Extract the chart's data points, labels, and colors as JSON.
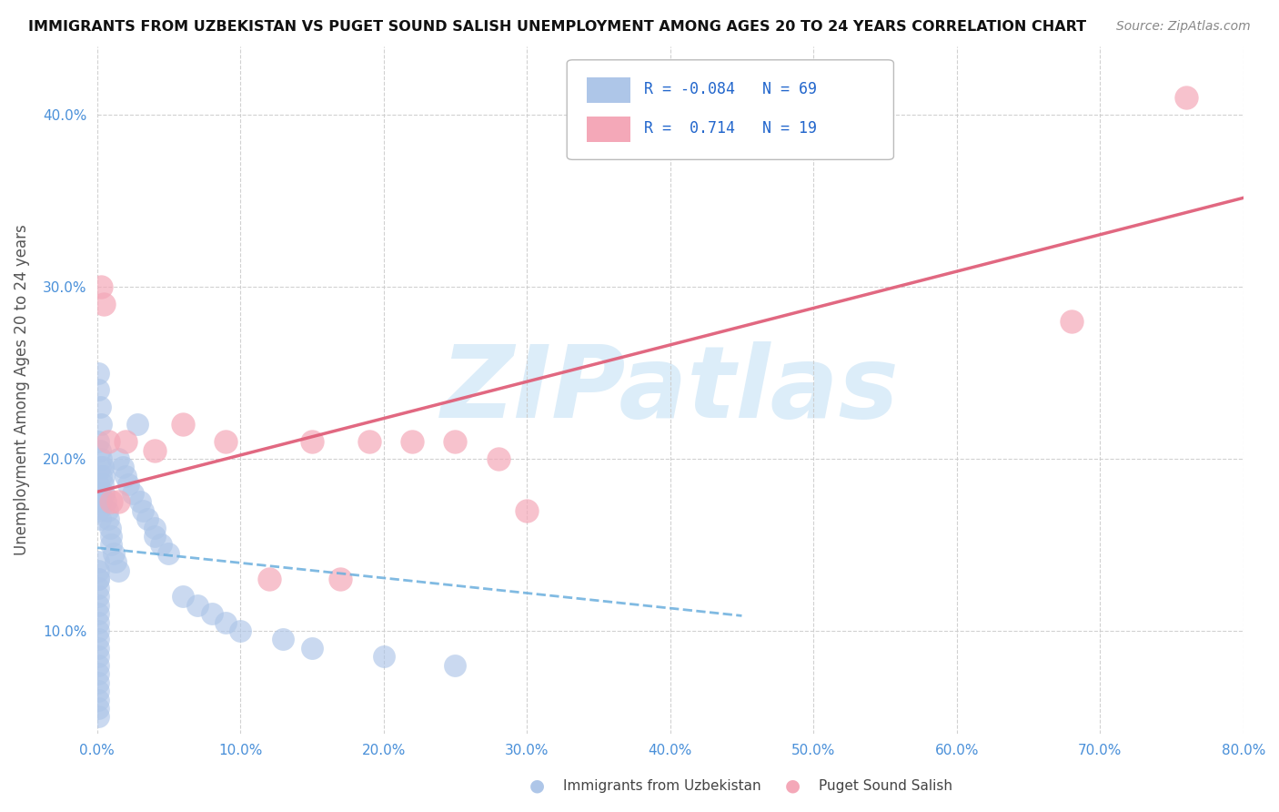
{
  "title": "IMMIGRANTS FROM UZBEKISTAN VS PUGET SOUND SALISH UNEMPLOYMENT AMONG AGES 20 TO 24 YEARS CORRELATION CHART",
  "source": "Source: ZipAtlas.com",
  "ylabel": "Unemployment Among Ages 20 to 24 years",
  "xlim": [
    0.0,
    0.8
  ],
  "ylim": [
    0.04,
    0.44
  ],
  "xticks": [
    0.0,
    0.1,
    0.2,
    0.3,
    0.4,
    0.5,
    0.6,
    0.7,
    0.8
  ],
  "xticklabels": [
    "0.0%",
    "10.0%",
    "20.0%",
    "30.0%",
    "40.0%",
    "50.0%",
    "60.0%",
    "70.0%",
    "80.0%"
  ],
  "yticks": [
    0.1,
    0.2,
    0.3,
    0.4
  ],
  "yticklabels": [
    "10.0%",
    "20.0%",
    "30.0%",
    "40.0%"
  ],
  "blue_R": -0.084,
  "blue_N": 69,
  "pink_R": 0.714,
  "pink_N": 19,
  "blue_color": "#aec6e8",
  "pink_color": "#f4a8b8",
  "blue_line_color": "#6aaedd",
  "pink_line_color": "#e0607a",
  "watermark_color": "#d6eaf8",
  "background_color": "#ffffff",
  "grid_color": "#cccccc",
  "blue_scatter_x": [
    0.002,
    0.003,
    0.004,
    0.005,
    0.006,
    0.007,
    0.008,
    0.009,
    0.01,
    0.01,
    0.012,
    0.013,
    0.015,
    0.015,
    0.018,
    0.02,
    0.022,
    0.025,
    0.028,
    0.03,
    0.032,
    0.035,
    0.04,
    0.04,
    0.045,
    0.05,
    0.001,
    0.001,
    0.002,
    0.003,
    0.001,
    0.002,
    0.003,
    0.004,
    0.005,
    0.001,
    0.002,
    0.003,
    0.001,
    0.002,
    0.001,
    0.001,
    0.001,
    0.001,
    0.001,
    0.001,
    0.001,
    0.001,
    0.001,
    0.001,
    0.001,
    0.001,
    0.001,
    0.001,
    0.001,
    0.001,
    0.001,
    0.001,
    0.001,
    0.001,
    0.06,
    0.07,
    0.08,
    0.09,
    0.1,
    0.13,
    0.15,
    0.2,
    0.25
  ],
  "blue_scatter_y": [
    0.195,
    0.19,
    0.185,
    0.18,
    0.175,
    0.17,
    0.165,
    0.16,
    0.155,
    0.15,
    0.145,
    0.14,
    0.135,
    0.2,
    0.195,
    0.19,
    0.185,
    0.18,
    0.22,
    0.175,
    0.17,
    0.165,
    0.16,
    0.155,
    0.15,
    0.145,
    0.25,
    0.24,
    0.23,
    0.22,
    0.21,
    0.205,
    0.2,
    0.195,
    0.19,
    0.185,
    0.18,
    0.175,
    0.17,
    0.165,
    0.135,
    0.13,
    0.125,
    0.12,
    0.115,
    0.11,
    0.105,
    0.1,
    0.095,
    0.09,
    0.085,
    0.08,
    0.075,
    0.07,
    0.065,
    0.06,
    0.055,
    0.05,
    0.13,
    0.14,
    0.12,
    0.115,
    0.11,
    0.105,
    0.1,
    0.095,
    0.09,
    0.085,
    0.08
  ],
  "pink_scatter_x": [
    0.003,
    0.005,
    0.008,
    0.01,
    0.015,
    0.02,
    0.04,
    0.06,
    0.09,
    0.12,
    0.15,
    0.17,
    0.19,
    0.22,
    0.25,
    0.28,
    0.3,
    0.68,
    0.76
  ],
  "pink_scatter_y": [
    0.3,
    0.29,
    0.21,
    0.175,
    0.175,
    0.21,
    0.205,
    0.22,
    0.21,
    0.13,
    0.21,
    0.13,
    0.21,
    0.21,
    0.21,
    0.2,
    0.17,
    0.28,
    0.41
  ]
}
